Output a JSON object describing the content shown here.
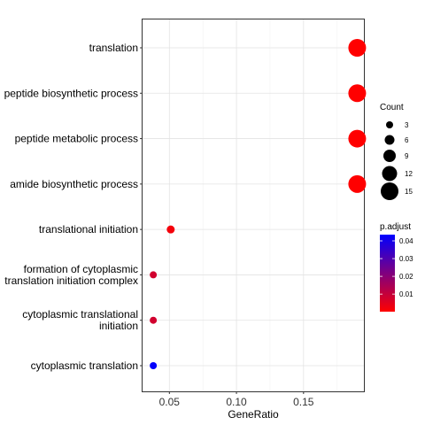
{
  "chart_data": {
    "type": "scatter",
    "title": "",
    "xlabel": "GeneRatio",
    "ylabel": "",
    "xlim": [
      0.03,
      0.195
    ],
    "x_ticks": [
      {
        "value": 0.05,
        "label": "0.05"
      },
      {
        "value": 0.1,
        "label": "0.10"
      },
      {
        "value": 0.15,
        "label": "0.15"
      }
    ],
    "grid": true,
    "categories": [
      [
        "translation"
      ],
      [
        "peptide biosynthetic process"
      ],
      [
        "peptide metabolic process"
      ],
      [
        "amide biosynthetic process"
      ],
      [
        "translational initiation"
      ],
      [
        "formation of cytoplasmic",
        "translation initiation complex"
      ],
      [
        "cytoplasmic translational",
        "initiation"
      ],
      [
        "cytoplasmic translation"
      ]
    ],
    "points": [
      {
        "x": 0.19,
        "count": 15,
        "p_adjust": 0.0001
      },
      {
        "x": 0.19,
        "count": 15,
        "p_adjust": 0.0001
      },
      {
        "x": 0.19,
        "count": 15,
        "p_adjust": 0.0001
      },
      {
        "x": 0.19,
        "count": 15,
        "p_adjust": 0.0001
      },
      {
        "x": 0.051,
        "count": 4,
        "p_adjust": 0.002
      },
      {
        "x": 0.038,
        "count": 3,
        "p_adjust": 0.008
      },
      {
        "x": 0.038,
        "count": 3,
        "p_adjust": 0.008
      },
      {
        "x": 0.038,
        "count": 3,
        "p_adjust": 0.043
      }
    ],
    "size_legend": {
      "title": "Count",
      "values": [
        3,
        6,
        9,
        12,
        15
      ]
    },
    "color_legend": {
      "title": "p.adjust",
      "ticks": [
        {
          "value": 0.04,
          "label": "0.04"
        },
        {
          "value": 0.03,
          "label": "0.03"
        },
        {
          "value": 0.02,
          "label": "0.02"
        },
        {
          "value": 0.01,
          "label": "0.01"
        }
      ],
      "range": [
        0.0001,
        0.0435
      ],
      "low_color": "#ff0000",
      "high_color": "#0000ff"
    },
    "legend_placement": "right"
  }
}
